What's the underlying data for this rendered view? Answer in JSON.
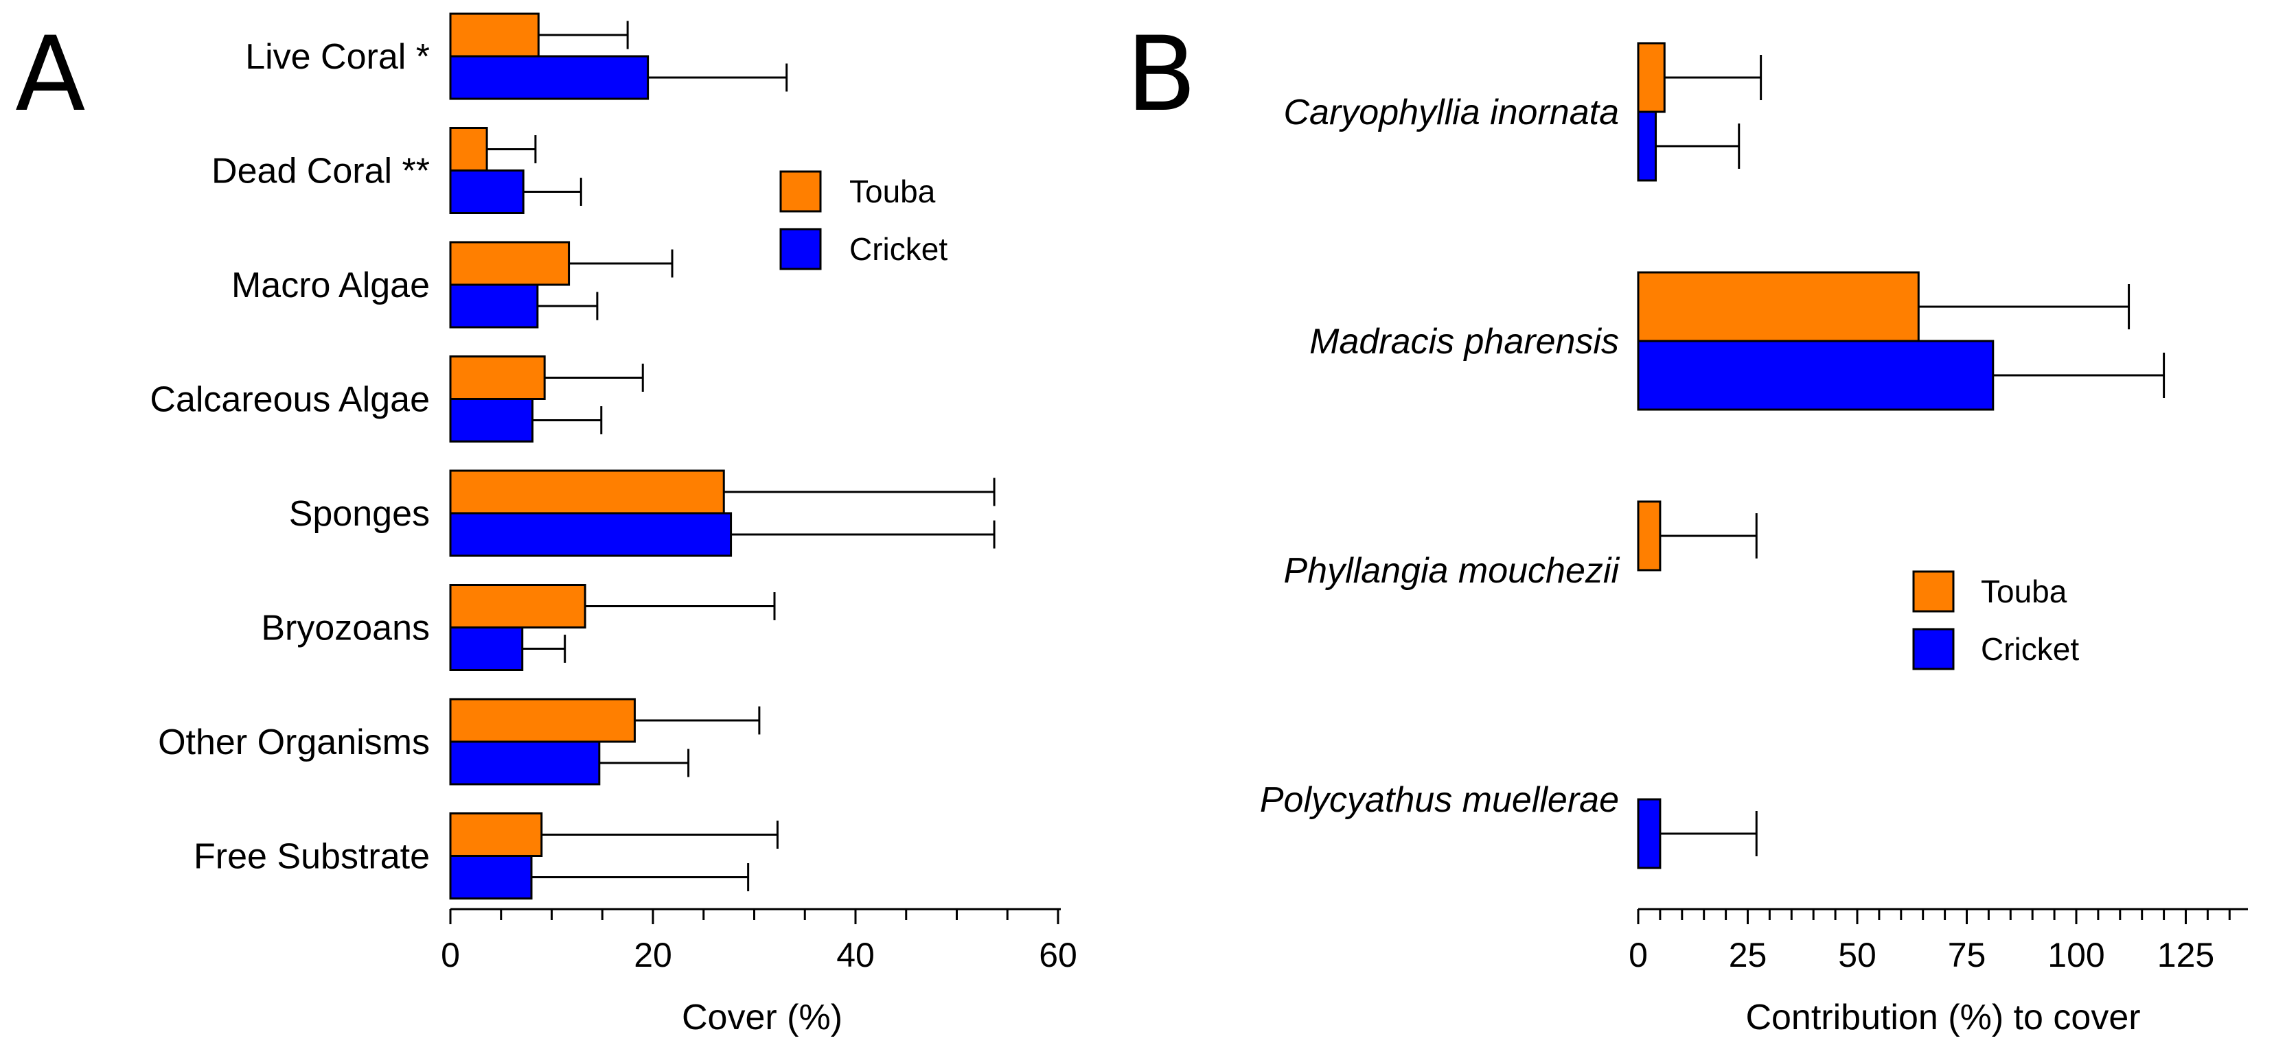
{
  "chart_data": [
    {
      "panel": "A",
      "type": "bar",
      "orientation": "horizontal",
      "categories": [
        "Live Coral *",
        "Dead Coral **",
        "Macro Algae",
        "Calcareous Algae",
        "Sponges",
        "Bryozoans",
        "Other Organisms",
        "Free Substrate"
      ],
      "series": [
        {
          "name": "Touba",
          "color": "#ff7f00",
          "values": [
            8.7,
            3.6,
            11.7,
            9.3,
            27.0,
            13.3,
            18.2,
            9.0
          ],
          "error": [
            8.8,
            4.8,
            10.2,
            9.7,
            26.7,
            18.7,
            12.3,
            23.3
          ]
        },
        {
          "name": "Cricket",
          "color": "#0000ff",
          "values": [
            19.5,
            7.2,
            8.6,
            8.1,
            27.7,
            7.1,
            14.7,
            8.0
          ],
          "error": [
            13.7,
            5.7,
            5.9,
            6.8,
            26.0,
            4.2,
            8.8,
            21.4
          ]
        }
      ],
      "xlabel": "Cover (%)",
      "ylabel": "",
      "xlim": [
        0,
        60
      ],
      "xticks": [
        0,
        20,
        40,
        60
      ],
      "xtick_labels": [
        "0",
        "20",
        "40",
        "60"
      ],
      "minor_step": 5,
      "legend": {
        "position": "right",
        "entries": [
          "Touba",
          "Cricket"
        ]
      }
    },
    {
      "panel": "B",
      "type": "bar",
      "orientation": "horizontal",
      "categories": [
        "Caryophyllia inornata",
        "Madracis pharensis",
        "Phyllangia mouchezii",
        "Polycyathus muellerae"
      ],
      "series": [
        {
          "name": "Touba",
          "color": "#ff7f00",
          "values": [
            6,
            64,
            5,
            0
          ],
          "error": [
            22,
            48,
            22,
            0
          ]
        },
        {
          "name": "Cricket",
          "color": "#0000ff",
          "values": [
            4,
            81,
            0,
            5
          ],
          "error": [
            19,
            39,
            0,
            22
          ]
        }
      ],
      "xlabel": "Contribution (%) to cover",
      "ylabel": "",
      "xlim": [
        0,
        140
      ],
      "xticks": [
        0,
        25,
        50,
        75,
        100,
        125
      ],
      "xtick_labels": [
        "0",
        "25",
        "50",
        "75",
        "100",
        "125"
      ],
      "minor_step": 5,
      "legend": {
        "position": "right",
        "entries": [
          "Touba",
          "Cricket"
        ]
      }
    }
  ]
}
